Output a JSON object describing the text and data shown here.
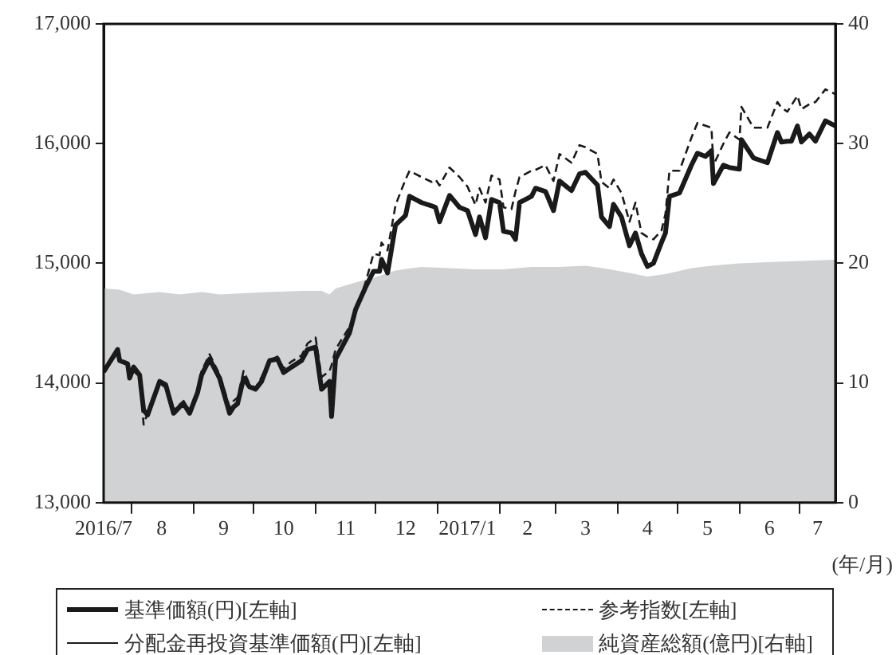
{
  "chart_data": {
    "type": "line",
    "xlabel": "(年/月)",
    "legend": "bottom",
    "grid": false,
    "x": [
      "2016-07-18",
      "2016-07-25",
      "2016-07-26",
      "2016-07-30",
      "2016-07-31",
      "2016-08-02",
      "2016-08-05",
      "2016-08-07",
      "2016-08-09",
      "2016-08-15",
      "2016-08-18",
      "2016-08-22",
      "2016-08-25",
      "2016-08-27",
      "2016-08-30",
      "2016-09-03",
      "2016-09-05",
      "2016-09-09",
      "2016-09-14",
      "2016-09-19",
      "2016-09-21",
      "2016-09-23",
      "2016-09-26",
      "2016-09-29",
      "2016-10-02",
      "2016-10-05",
      "2016-10-09",
      "2016-10-13",
      "2016-10-16",
      "2016-10-20",
      "2016-10-25",
      "2016-10-28",
      "2016-11-01",
      "2016-11-04",
      "2016-11-08",
      "2016-11-09",
      "2016-11-11",
      "2016-11-18",
      "2016-11-21",
      "2016-11-26",
      "2016-11-30",
      "2016-12-03",
      "2016-12-04",
      "2016-12-07",
      "2016-12-11",
      "2016-12-16",
      "2016-12-18",
      "2016-12-24",
      "2016-12-29",
      "2016-12-31",
      "2017-01-02",
      "2017-01-07",
      "2017-01-12",
      "2017-01-16",
      "2017-01-20",
      "2017-01-22",
      "2017-01-25",
      "2017-01-28",
      "2017-02-01",
      "2017-02-03",
      "2017-02-07",
      "2017-02-09",
      "2017-02-11",
      "2017-02-17",
      "2017-02-19",
      "2017-02-24",
      "2017-02-28",
      "2017-03-03",
      "2017-03-09",
      "2017-03-13",
      "2017-03-16",
      "2017-03-22",
      "2017-03-24",
      "2017-03-28",
      "2017-03-30",
      "2017-04-03",
      "2017-04-07",
      "2017-04-10",
      "2017-04-13",
      "2017-04-16",
      "2017-04-19",
      "2017-04-23",
      "2017-04-25",
      "2017-04-27",
      "2017-05-02",
      "2017-05-08",
      "2017-05-11",
      "2017-05-15",
      "2017-05-18",
      "2017-05-19",
      "2017-05-24",
      "2017-05-27",
      "2017-06-01",
      "2017-06-02",
      "2017-06-08",
      "2017-06-15",
      "2017-06-20",
      "2017-06-22",
      "2017-06-25",
      "2017-06-27",
      "2017-06-30",
      "2017-07-02",
      "2017-07-06",
      "2017-07-09",
      "2017-07-14",
      "2017-07-19"
    ],
    "xlim": [
      "2016-07-18",
      "2017-07-19"
    ],
    "xticks": [
      {
        "value": "2016-07-18",
        "label": "2016/7"
      },
      {
        "value": "2016-08-01",
        "label": null
      },
      {
        "value": "2016-08-16",
        "label": "8"
      },
      {
        "value": "2016-09-01",
        "label": null
      },
      {
        "value": "2016-09-16",
        "label": "9"
      },
      {
        "value": "2016-10-01",
        "label": null
      },
      {
        "value": "2016-10-16",
        "label": "10"
      },
      {
        "value": "2016-11-01",
        "label": null
      },
      {
        "value": "2016-11-16",
        "label": "11"
      },
      {
        "value": "2016-12-01",
        "label": null
      },
      {
        "value": "2016-12-16",
        "label": "12"
      },
      {
        "value": "2017-01-01",
        "label": null
      },
      {
        "value": "2017-01-16",
        "label": "2017/1"
      },
      {
        "value": "2017-02-01",
        "label": null
      },
      {
        "value": "2017-02-15",
        "label": "2"
      },
      {
        "value": "2017-03-01",
        "label": null
      },
      {
        "value": "2017-03-16",
        "label": "3"
      },
      {
        "value": "2017-04-01",
        "label": null
      },
      {
        "value": "2017-04-16",
        "label": "4"
      },
      {
        "value": "2017-05-01",
        "label": null
      },
      {
        "value": "2017-05-16",
        "label": "5"
      },
      {
        "value": "2017-06-01",
        "label": null
      },
      {
        "value": "2017-06-16",
        "label": "6"
      },
      {
        "value": "2017-07-01",
        "label": null
      },
      {
        "value": "2017-07-10",
        "label": "7"
      }
    ],
    "ylim": [
      13000,
      17000
    ],
    "yticks": [
      {
        "value": 13000,
        "label": "13,000"
      },
      {
        "value": 14000,
        "label": "14,000"
      },
      {
        "value": 15000,
        "label": "15,000"
      },
      {
        "value": 16000,
        "label": "16,000"
      },
      {
        "value": 17000,
        "label": "17,000"
      }
    ],
    "y2lim": [
      0,
      40
    ],
    "y2ticks": [
      0,
      10,
      20,
      30,
      40
    ],
    "series": [
      {
        "name": "基準価額(円)[左軸]",
        "type": "line",
        "color": "#1a1a1a",
        "line_style": "solid",
        "values": [
          14093,
          14280,
          14187,
          14160,
          14040,
          14133,
          14067,
          13773,
          13733,
          14013,
          13987,
          13747,
          13800,
          13827,
          13747,
          13920,
          14067,
          14200,
          14040,
          13747,
          13800,
          13827,
          14040,
          13967,
          13947,
          14013,
          14187,
          14200,
          14087,
          14133,
          14187,
          14280,
          14300,
          13947,
          14013,
          13720,
          14200,
          14420,
          14613,
          14800,
          14933,
          14933,
          15033,
          14920,
          15320,
          15400,
          15560,
          15507,
          15480,
          15467,
          15347,
          15567,
          15467,
          15440,
          15240,
          15387,
          15213,
          15533,
          15507,
          15267,
          15253,
          15200,
          15507,
          15560,
          15627,
          15600,
          15440,
          15687,
          15607,
          15747,
          15760,
          15653,
          15387,
          15307,
          15493,
          15387,
          15147,
          15253,
          15080,
          14973,
          15000,
          15173,
          15253,
          15560,
          15587,
          15820,
          15920,
          15893,
          15940,
          15667,
          15820,
          15800,
          15787,
          16033,
          15880,
          15840,
          16093,
          16013,
          16020,
          16020,
          16147,
          16013,
          16080,
          16020,
          16190,
          16147
        ]
      },
      {
        "name": "参考指数[左軸]",
        "type": "line",
        "color": "#1a1a1a",
        "line_style": "dashed",
        "values": [
          14093,
          14250,
          14200,
          14150,
          14080,
          14100,
          14050,
          13653,
          13750,
          14000,
          13960,
          13780,
          13820,
          13850,
          13770,
          13950,
          14100,
          14240,
          14070,
          13800,
          13850,
          13880,
          14100,
          13990,
          13960,
          14050,
          14190,
          14220,
          14120,
          14180,
          14230,
          14330,
          14380,
          14050,
          14100,
          14150,
          14280,
          14470,
          14587,
          14840,
          15080,
          15067,
          15173,
          15107,
          15487,
          15700,
          15773,
          15720,
          15680,
          15700,
          15650,
          15800,
          15720,
          15640,
          15487,
          15627,
          15507,
          15733,
          15700,
          15467,
          15453,
          15600,
          15720,
          15773,
          15780,
          15820,
          15687,
          15913,
          15840,
          15987,
          15970,
          15913,
          15680,
          15627,
          15700,
          15587,
          15347,
          15507,
          15253,
          15220,
          15200,
          15273,
          15413,
          15773,
          15773,
          16050,
          16173,
          16150,
          16133,
          15820,
          16000,
          16093,
          16033,
          16307,
          16133,
          16133,
          16347,
          16300,
          16267,
          16320,
          16400,
          16287,
          16330,
          16347,
          16453,
          16413
        ]
      },
      {
        "name": "分配金再投資基準価額(円)[左軸]",
        "type": "line",
        "color": "#1a1a1a",
        "line_style": "solid",
        "values": [
          null,
          null,
          null,
          null,
          null,
          null,
          null,
          null,
          null,
          null,
          null,
          null,
          null,
          null,
          null,
          null,
          null,
          null,
          null,
          null,
          null,
          null,
          null,
          null,
          null,
          null,
          null,
          null,
          null,
          null,
          null,
          null,
          null,
          null,
          null,
          null,
          null,
          null,
          null,
          null,
          null,
          null,
          null,
          null,
          null,
          null,
          null,
          null,
          null,
          null,
          null,
          null,
          null,
          null,
          null,
          null,
          null,
          null,
          null,
          null,
          null,
          null,
          null,
          null,
          null,
          null,
          null,
          null,
          null,
          null,
          null,
          null,
          null,
          null,
          null,
          null,
          null,
          null,
          null,
          null,
          null,
          null,
          null,
          null,
          null,
          null,
          null,
          null,
          null,
          null,
          null,
          null,
          null,
          null,
          null,
          null,
          null,
          null,
          null,
          null,
          null,
          null,
          null,
          null,
          null,
          null
        ]
      },
      {
        "name": "純資産総額(億円)[右軸]",
        "type": "area",
        "axis": "y2",
        "color": "#d1d2d4",
        "x": [
          "2016-07-18",
          "2016-07-26",
          "2016-08-02",
          "2016-08-15",
          "2016-08-25",
          "2016-09-05",
          "2016-09-14",
          "2016-09-26",
          "2016-10-09",
          "2016-10-25",
          "2016-11-04",
          "2016-11-08",
          "2016-11-11",
          "2016-11-21",
          "2016-11-30",
          "2016-12-11",
          "2016-12-24",
          "2017-01-07",
          "2017-01-20",
          "2017-02-03",
          "2017-02-17",
          "2017-03-03",
          "2017-03-16",
          "2017-03-28",
          "2017-04-07",
          "2017-04-16",
          "2017-04-25",
          "2017-05-08",
          "2017-05-18",
          "2017-06-01",
          "2017-06-15",
          "2017-07-02",
          "2017-07-19"
        ],
        "values": [
          17.9,
          17.8,
          17.4,
          17.6,
          17.4,
          17.6,
          17.4,
          17.5,
          17.6,
          17.7,
          17.7,
          17.4,
          17.9,
          18.4,
          18.8,
          19.4,
          19.7,
          19.6,
          19.5,
          19.5,
          19.7,
          19.7,
          19.8,
          19.5,
          19.2,
          18.9,
          19.1,
          19.6,
          19.8,
          20.0,
          20.1,
          20.2,
          20.3
        ]
      }
    ]
  }
}
